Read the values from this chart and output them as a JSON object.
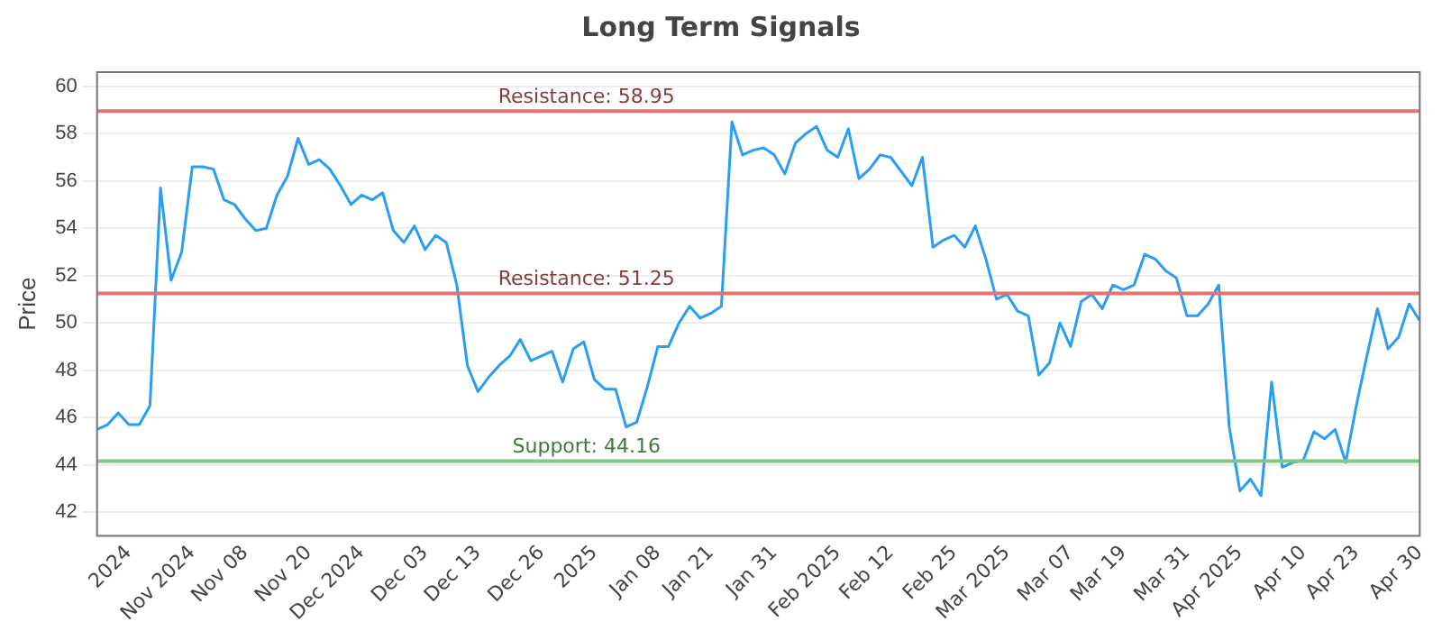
{
  "chart_data": {
    "type": "line",
    "title": "Long Term Signals",
    "ylabel": "Price",
    "categories": [
      null,
      null,
      null,
      "2024",
      null,
      null,
      null,
      null,
      null,
      "Nov 2024",
      null,
      null,
      null,
      null,
      "Nov 08",
      null,
      null,
      null,
      null,
      null,
      "Nov 20",
      null,
      null,
      null,
      null,
      "Dec 2024",
      null,
      null,
      null,
      null,
      null,
      "Dec 03",
      null,
      null,
      null,
      null,
      "Dec 13",
      null,
      null,
      null,
      null,
      null,
      "Dec 26",
      null,
      null,
      null,
      null,
      "2025",
      null,
      null,
      null,
      null,
      null,
      "Jan 08",
      null,
      null,
      null,
      null,
      "Jan 21",
      null,
      null,
      null,
      null,
      null,
      "Jan 31",
      null,
      null,
      null,
      null,
      null,
      "Feb 2025",
      null,
      null,
      null,
      null,
      "Feb 12",
      null,
      null,
      null,
      null,
      null,
      "Feb 25",
      null,
      null,
      null,
      null,
      "Mar 2025",
      null,
      null,
      null,
      null,
      null,
      "Mar 07",
      null,
      null,
      null,
      null,
      "Mar 19",
      null,
      null,
      null,
      null,
      null,
      "Mar 31",
      null,
      null,
      null,
      null,
      "Apr 2025",
      null,
      null,
      null,
      null,
      null,
      "Apr 10",
      null,
      null,
      null,
      null,
      "Apr 23",
      null,
      null,
      null,
      null,
      null,
      "Apr 30"
    ],
    "series": [
      {
        "color": "#2a9df4",
        "values": [
          45.5,
          45.7,
          46.2,
          45.7,
          45.7,
          46.5,
          55.7,
          51.8,
          53.0,
          56.6,
          56.6,
          56.5,
          55.2,
          55.0,
          54.4,
          53.9,
          54.0,
          55.4,
          56.2,
          57.8,
          56.7,
          56.9,
          56.5,
          55.8,
          55.0,
          55.4,
          55.2,
          55.5,
          53.9,
          53.4,
          54.1,
          53.1,
          53.7,
          53.4,
          51.6,
          48.2,
          47.1,
          47.7,
          48.2,
          48.6,
          49.3,
          48.4,
          48.6,
          48.8,
          47.5,
          48.9,
          49.2,
          47.6,
          47.2,
          47.2,
          45.6,
          45.8,
          47.3,
          49.0,
          49.0,
          50.0,
          50.7,
          50.2,
          50.4,
          50.7,
          58.5,
          57.1,
          57.3,
          57.4,
          57.1,
          56.3,
          57.6,
          58.0,
          58.3,
          57.3,
          57.0,
          58.2,
          56.1,
          56.5,
          57.1,
          57.0,
          56.4,
          55.8,
          57.0,
          53.2,
          53.5,
          53.7,
          53.2,
          54.1,
          52.7,
          51.0,
          51.2,
          50.5,
          50.3,
          47.8,
          48.3,
          50.0,
          49.0,
          50.9,
          51.2,
          50.6,
          51.6,
          51.4,
          51.6,
          52.9,
          52.7,
          52.2,
          51.9,
          50.3,
          50.3,
          50.8,
          51.6,
          45.6,
          42.9,
          43.4,
          42.7,
          47.5,
          43.9,
          44.1,
          44.2,
          45.4,
          45.1,
          45.5,
          44.1,
          46.5,
          48.6,
          50.6,
          48.9,
          49.4,
          50.8,
          50.1
        ]
      }
    ],
    "ylim": [
      41,
      60.6
    ],
    "yticks": [
      42,
      44,
      46,
      48,
      50,
      52,
      54,
      56,
      58,
      60
    ],
    "grid": "y",
    "legend": false,
    "marker": "none",
    "line_style": "solid",
    "ref_lines": [
      {
        "axis": "y",
        "value": 58.95,
        "label": "Resistance: 58.95",
        "color": "#e57373"
      },
      {
        "axis": "y",
        "value": 51.25,
        "label": "Resistance: 51.25",
        "color": "#e57373"
      },
      {
        "axis": "y",
        "value": 44.16,
        "label": "Support: 44.16",
        "color": "#81c784"
      }
    ]
  }
}
